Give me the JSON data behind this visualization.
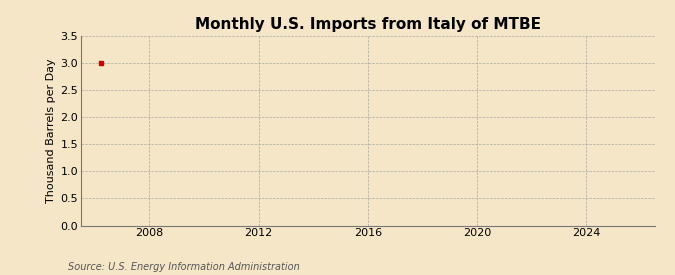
{
  "title": "Monthly U.S. Imports from Italy of MTBE",
  "ylabel": "Thousand Barrels per Day",
  "source": "Source: U.S. Energy Information Administration",
  "background_color": "#f5e6c8",
  "plot_background_color": "#f5e6c8",
  "grid_color": "#999999",
  "data_point_x": 2006.25,
  "data_point_y": 3.0,
  "data_color": "#cc0000",
  "xlim": [
    2005.5,
    2026.5
  ],
  "ylim": [
    0.0,
    3.5
  ],
  "yticks": [
    0.0,
    0.5,
    1.0,
    1.5,
    2.0,
    2.5,
    3.0,
    3.5
  ],
  "xticks": [
    2008,
    2012,
    2016,
    2020,
    2024
  ],
  "title_fontsize": 11,
  "label_fontsize": 8,
  "tick_fontsize": 8,
  "source_fontsize": 7
}
